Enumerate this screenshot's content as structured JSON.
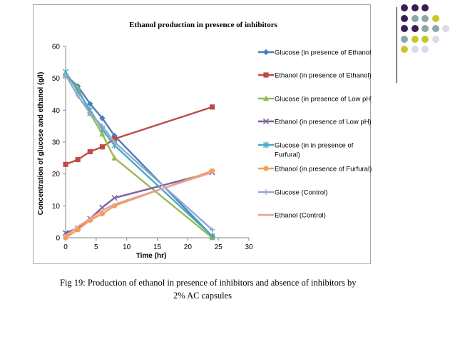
{
  "chart_data": {
    "type": "line",
    "title": "Ethanol production in presence of inhibitors",
    "xlabel": "Time (hr)",
    "ylabel": "Concentration of glucose and ethanol (g/l)",
    "xlim": [
      0,
      30
    ],
    "ylim": [
      0,
      60
    ],
    "xticks": [
      "0",
      "5",
      "10",
      "15",
      "20",
      "25",
      "30"
    ],
    "yticks": [
      "0",
      "10",
      "20",
      "30",
      "40",
      "50",
      "60"
    ],
    "legend_position": "right",
    "series": [
      {
        "name": "Glucose (in presence of Ethanol)",
        "name_lines": [
          "Glucose (in presence of Ethanol)"
        ],
        "color": "#4a7ebb",
        "marker": "diamond",
        "x": [
          0,
          2,
          4,
          6,
          8,
          24
        ],
        "y": [
          51,
          47.5,
          42,
          37.5,
          32,
          0.5
        ]
      },
      {
        "name": "Ethanol (in presence of Ethanol)",
        "name_lines": [
          "Ethanol (in presence of Ethanol)"
        ],
        "color": "#be4b48",
        "marker": "square",
        "x": [
          0,
          2,
          4,
          6,
          8,
          24
        ],
        "y": [
          23,
          24.5,
          27,
          28.5,
          31,
          41
        ]
      },
      {
        "name": "Glucose (in presence of Low pH)",
        "name_lines": [
          "Glucose (in presence of Low pH)"
        ],
        "color": "#98b954",
        "marker": "triangle",
        "x": [
          0,
          2,
          4,
          6,
          8,
          24
        ],
        "y": [
          51,
          47,
          39,
          32.5,
          25,
          0
        ]
      },
      {
        "name": "Ethanol (in presence of Low pH)",
        "name_lines": [
          "Ethanol (in presence of Low pH)"
        ],
        "color": "#7d60a0",
        "marker": "x",
        "x": [
          0,
          2,
          4,
          6,
          8,
          24
        ],
        "y": [
          1.5,
          3,
          6,
          9.5,
          12.5,
          20.5
        ]
      },
      {
        "name": "Glucose (in in presence of Furfural)",
        "name_lines": [
          "Glucose (in in presence of",
          "Furfural)"
        ],
        "color": "#46aac5",
        "marker": "star",
        "x": [
          0,
          2,
          4,
          6,
          8,
          24
        ],
        "y": [
          52,
          46,
          40,
          34,
          29,
          0.5
        ]
      },
      {
        "name": "Ethanol (in presence of Furfural)",
        "name_lines": [
          "Ethanol (in presence of Furfural)"
        ],
        "color": "#f59d56",
        "marker": "circle",
        "x": [
          0,
          2,
          4,
          6,
          8,
          24
        ],
        "y": [
          0,
          2.5,
          5.5,
          7.5,
          10,
          21
        ]
      },
      {
        "name": "Glucose (Control)",
        "name_lines": [
          "Glucose (Control)"
        ],
        "color": "#95a9cf",
        "marker": "plus",
        "x": [
          0,
          2,
          4,
          6,
          8,
          24
        ],
        "y": [
          51,
          44.5,
          39,
          35,
          30,
          2.5
        ]
      },
      {
        "name": "Ethanol (Control)",
        "name_lines": [
          "Ethanol (Control)"
        ],
        "color": "#e6a19c",
        "marker": "none",
        "x": [
          0,
          2,
          4,
          6,
          8,
          24
        ],
        "y": [
          0.5,
          3.5,
          6,
          8.5,
          10.5,
          20.5
        ]
      }
    ]
  },
  "caption": {
    "line1": "Fig 19: Production of ethanol in presence of inhibitors and absence of inhibitors by",
    "line2": "2% AC capsules"
  },
  "decor": {
    "colors": [
      "#3b1d53",
      "#8ba8a8",
      "#c9c62c",
      "#d8dbe8"
    ],
    "grid": [
      [
        0,
        0,
        0,
        -1,
        -1
      ],
      [
        0,
        1,
        1,
        2,
        -1
      ],
      [
        0,
        0,
        1,
        1,
        3
      ],
      [
        1,
        2,
        2,
        3,
        -1
      ],
      [
        2,
        3,
        3,
        -1,
        -1
      ]
    ]
  }
}
